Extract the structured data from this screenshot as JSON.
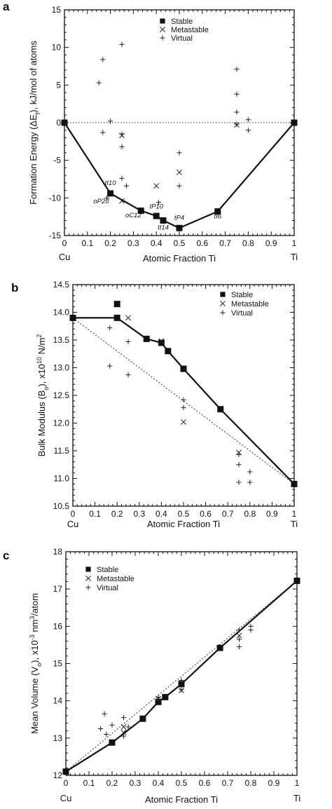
{
  "chart_data": [
    {
      "type": "scatter",
      "panel": "a",
      "xlabel": "Atomic Fraction Ti",
      "ylabel": "Formation Energy (ΔEf), kJ/mol of atoms",
      "xlim": [
        0,
        1
      ],
      "ylim": [
        -15,
        15
      ],
      "x_ticks": [
        "0",
        "0.1",
        "0.2",
        "0.3",
        "0.4",
        "0.5",
        "0.6",
        "0.7",
        "0.8",
        "0.9",
        "1"
      ],
      "y_ticks": [
        "-15",
        "-10",
        "-5",
        "0",
        "5",
        "10",
        "15"
      ],
      "end_labels": [
        "Cu",
        "Ti"
      ],
      "zero_line": true,
      "legend_position": "top-center",
      "series": [
        {
          "name": "Stable",
          "marker": "square",
          "hull": true,
          "points": [
            [
              0,
              0
            ],
            [
              0.2,
              -9.4
            ],
            [
              0.333,
              -11.7
            ],
            [
              0.4,
              -12.4
            ],
            [
              0.43,
              -13.0
            ],
            [
              0.5,
              -14.0
            ],
            [
              0.667,
              -11.8
            ],
            [
              1,
              0
            ]
          ]
        },
        {
          "name": "Metastable",
          "marker": "x",
          "points": [
            [
              0.25,
              -1.7
            ],
            [
              0.25,
              -10.4
            ],
            [
              0.4,
              -8.4
            ],
            [
              0.5,
              -6.6
            ],
            [
              0.75,
              -0.3
            ]
          ]
        },
        {
          "name": "Virtual",
          "marker": "plus",
          "points": [
            [
              0.15,
              5.3
            ],
            [
              0.167,
              8.4
            ],
            [
              0.167,
              -1.3
            ],
            [
              0.185,
              -10.0
            ],
            [
              0.2,
              0.2
            ],
            [
              0.25,
              10.4
            ],
            [
              0.25,
              -1.5
            ],
            [
              0.25,
              -3.2
            ],
            [
              0.25,
              -7.4
            ],
            [
              0.27,
              -8.4
            ],
            [
              0.41,
              -10.6
            ],
            [
              0.5,
              -4.0
            ],
            [
              0.5,
              -8.4
            ],
            [
              0.75,
              7.1
            ],
            [
              0.75,
              3.8
            ],
            [
              0.75,
              1.4
            ],
            [
              0.75,
              -0.2
            ],
            [
              0.8,
              0.4
            ],
            [
              0.8,
              -1.0
            ]
          ]
        }
      ],
      "annotations": [
        {
          "text": "tI10",
          "x": 0.2,
          "y": -8.3
        },
        {
          "text": "oP20",
          "x": 0.16,
          "y": -10.7
        },
        {
          "text": "oC12",
          "x": 0.3,
          "y": -12.6
        },
        {
          "text": "tP10",
          "x": 0.4,
          "y": -11.4
        },
        {
          "text": "tP4",
          "x": 0.5,
          "y": -12.9
        },
        {
          "text": "tI14",
          "x": 0.43,
          "y": -14.2
        },
        {
          "text": "tI6",
          "x": 0.667,
          "y": -12.7
        }
      ]
    },
    {
      "type": "scatter",
      "panel": "b",
      "xlabel": "Atomic Fraction Ti",
      "ylabel": "Bulk Modulus (Bo), x10¹⁰ N/m²",
      "xlim": [
        0,
        1
      ],
      "ylim": [
        10.5,
        14.5
      ],
      "x_ticks": [
        "0",
        "0.1",
        "0.2",
        "0.3",
        "0.4",
        "0.5",
        "0.6",
        "0.7",
        "0.8",
        "0.9",
        "1"
      ],
      "y_ticks": [
        "10.5",
        "11.0",
        "11.5",
        "12.0",
        "12.5",
        "13.0",
        "13.5",
        "14.0",
        "14.5"
      ],
      "end_labels": [
        "Cu",
        "Ti"
      ],
      "legend_position": "top-right",
      "reference_line": [
        [
          0,
          13.9
        ],
        [
          1,
          10.9
        ]
      ],
      "series": [
        {
          "name": "Stable",
          "marker": "square",
          "connected": true,
          "points": [
            [
              0,
              13.9
            ],
            [
              0.2,
              13.9
            ],
            [
              0.333,
              13.52
            ],
            [
              0.4,
              13.45
            ],
            [
              0.43,
              13.3
            ],
            [
              0.5,
              12.98
            ],
            [
              0.667,
              12.25
            ],
            [
              1,
              10.9
            ]
          ]
        },
        {
          "name": "Stable",
          "marker": "square",
          "connected": false,
          "points": [
            [
              0.2,
              14.15
            ]
          ]
        },
        {
          "name": "Metastable",
          "marker": "x",
          "points": [
            [
              0.25,
              13.9
            ],
            [
              0.4,
              13.48
            ],
            [
              0.5,
              12.02
            ],
            [
              0.75,
              11.47
            ]
          ]
        },
        {
          "name": "Virtual",
          "marker": "plus",
          "points": [
            [
              0.167,
              13.72
            ],
            [
              0.167,
              13.03
            ],
            [
              0.25,
              13.47
            ],
            [
              0.25,
              12.87
            ],
            [
              0.5,
              12.42
            ],
            [
              0.5,
              12.28
            ],
            [
              0.75,
              11.43
            ],
            [
              0.75,
              11.25
            ],
            [
              0.75,
              10.93
            ],
            [
              0.8,
              11.12
            ],
            [
              0.8,
              10.93
            ]
          ]
        }
      ]
    },
    {
      "type": "scatter",
      "panel": "c",
      "xlabel": "Atomic Fraction Ti",
      "ylabel": "Mean Volume (Vo), x10⁻³ nm³/atom",
      "xlim": [
        0,
        1
      ],
      "ylim": [
        12,
        18
      ],
      "x_ticks": [
        "0",
        "0.1",
        "0.2",
        "0.3",
        "0.4",
        "0.5",
        "0.6",
        "0.7",
        "0.8",
        "0.9",
        "1"
      ],
      "y_ticks": [
        "12",
        "13",
        "14",
        "15",
        "16",
        "17",
        "18"
      ],
      "end_labels": [
        "Cu",
        "Ti"
      ],
      "legend_position": "top-left",
      "reference_line": [
        [
          0,
          12.1
        ],
        [
          1,
          17.22
        ]
      ],
      "series": [
        {
          "name": "Stable",
          "marker": "square",
          "connected": true,
          "points": [
            [
              0,
              12.1
            ],
            [
              0.2,
              12.88
            ],
            [
              0.333,
              13.52
            ],
            [
              0.4,
              13.97
            ],
            [
              0.43,
              14.1
            ],
            [
              0.5,
              14.45
            ],
            [
              0.667,
              15.42
            ],
            [
              1,
              17.22
            ]
          ]
        },
        {
          "name": "Metastable",
          "marker": "x",
          "points": [
            [
              0.25,
              13.3
            ],
            [
              0.25,
              13.15
            ],
            [
              0.4,
              14.05
            ],
            [
              0.5,
              14.28
            ],
            [
              0.75,
              15.75
            ]
          ]
        },
        {
          "name": "Virtual",
          "marker": "plus",
          "points": [
            [
              0.15,
              13.25
            ],
            [
              0.167,
              13.65
            ],
            [
              0.175,
              13.1
            ],
            [
              0.2,
              13.35
            ],
            [
              0.25,
              13.55
            ],
            [
              0.25,
              13.05
            ],
            [
              0.27,
              13.3
            ],
            [
              0.4,
              14.1
            ],
            [
              0.5,
              14.55
            ],
            [
              0.5,
              14.3
            ],
            [
              0.75,
              15.9
            ],
            [
              0.75,
              15.65
            ],
            [
              0.75,
              15.45
            ],
            [
              0.8,
              16.0
            ],
            [
              0.8,
              15.9
            ]
          ]
        }
      ]
    }
  ]
}
